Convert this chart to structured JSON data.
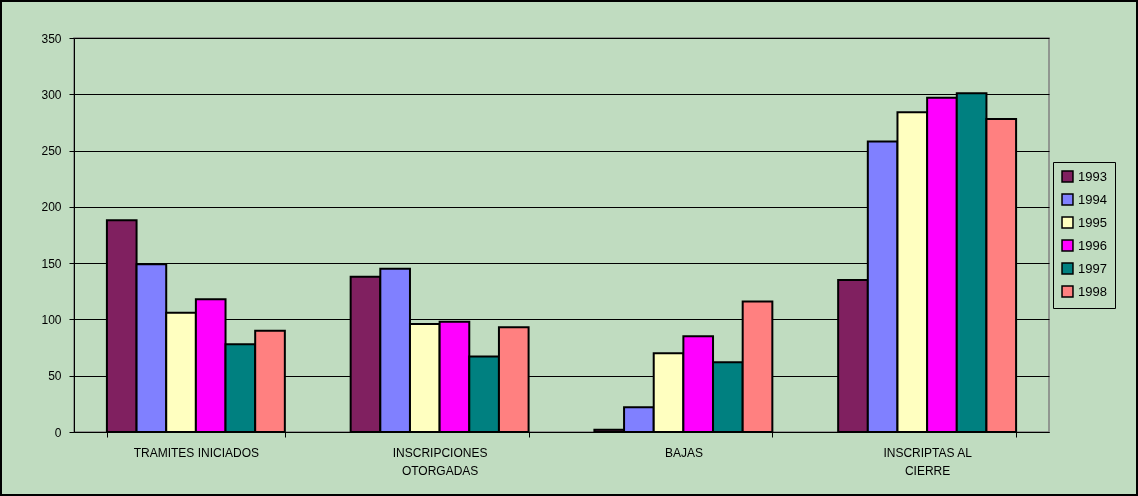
{
  "chart_data": {
    "type": "bar",
    "categories": [
      "TRAMITES INICIADOS",
      "INSCRIPCIONES OTORGADAS",
      "BAJAS",
      "INSCRIPTAS AL CIERRE"
    ],
    "series": [
      {
        "name": "1993",
        "color": "#802060",
        "values": [
          188,
          138,
          2,
          135
        ]
      },
      {
        "name": "1994",
        "color": "#8080ff",
        "values": [
          149,
          145,
          22,
          258
        ]
      },
      {
        "name": "1995",
        "color": "#ffffc0",
        "values": [
          106,
          96,
          70,
          284
        ]
      },
      {
        "name": "1996",
        "color": "#ff00ff",
        "values": [
          118,
          98,
          85,
          297
        ]
      },
      {
        "name": "1997",
        "color": "#008080",
        "values": [
          78,
          67,
          62,
          301
        ]
      },
      {
        "name": "1998",
        "color": "#ff8080",
        "values": [
          90,
          93,
          116,
          278
        ]
      }
    ],
    "ylim": [
      0,
      350
    ],
    "yticks": [
      0,
      50,
      100,
      150,
      200,
      250,
      300,
      350
    ],
    "grid": "y",
    "legend": "right"
  }
}
